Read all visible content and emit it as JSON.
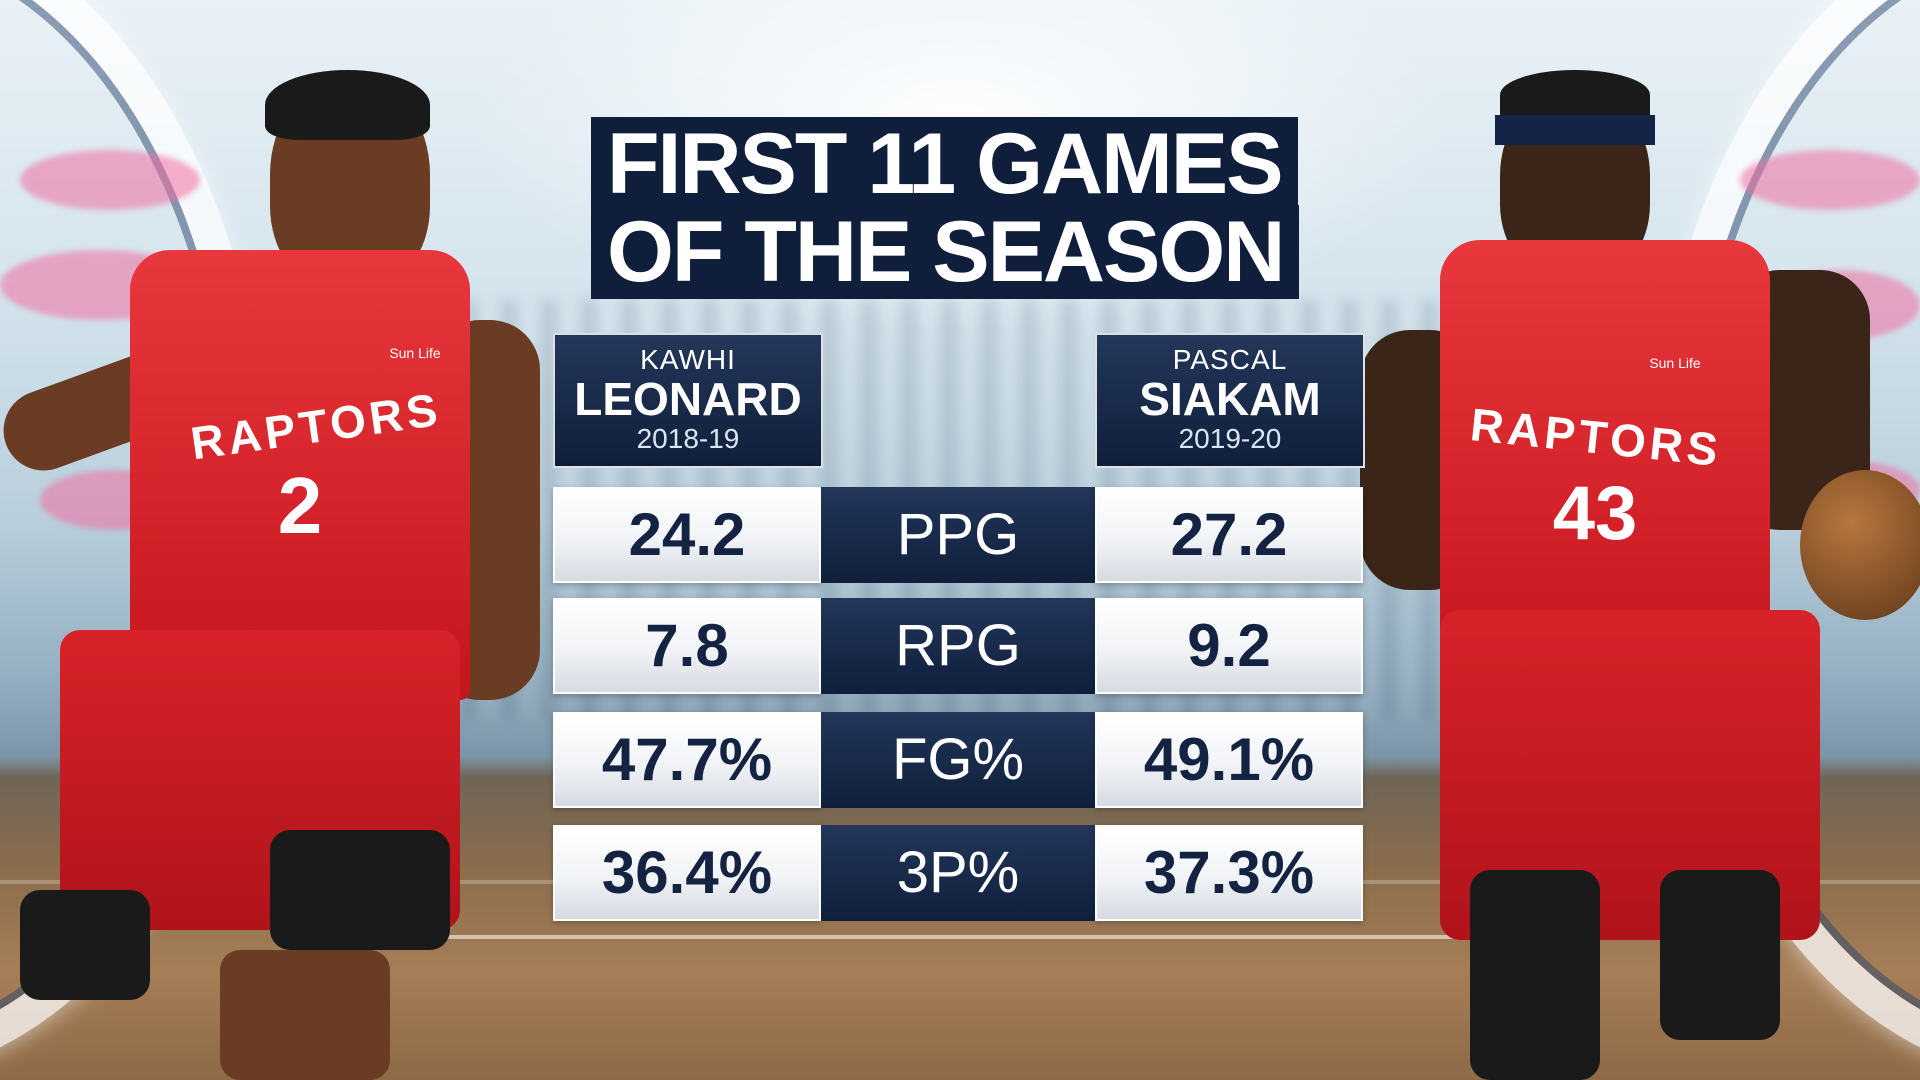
{
  "title": {
    "line1": "FIRST 11 GAMES",
    "line2": "OF THE SEASON"
  },
  "players": [
    {
      "first_name": "KAWHI",
      "last_name": "LEONARD",
      "season": "2018-19",
      "jersey_team": "RAPTORS",
      "jersey_number": "2",
      "sponsor": "Sun Life"
    },
    {
      "first_name": "PASCAL",
      "last_name": "SIAKAM",
      "season": "2019-20",
      "jersey_team": "RAPTORS",
      "jersey_number": "43",
      "sponsor": "Sun Life"
    }
  ],
  "stats": [
    {
      "label": "PPG",
      "left": "24.2",
      "right": "27.2"
    },
    {
      "label": "RPG",
      "left": "7.8",
      "right": "9.2"
    },
    {
      "label": "FG%",
      "left": "47.7%",
      "right": "49.1%"
    },
    {
      "label": "3P%",
      "left": "36.4%",
      "right": "37.3%"
    }
  ],
  "colors": {
    "navy": "#0f1f3b",
    "stat_text": "#142342",
    "jersey_red": "#d82229"
  }
}
